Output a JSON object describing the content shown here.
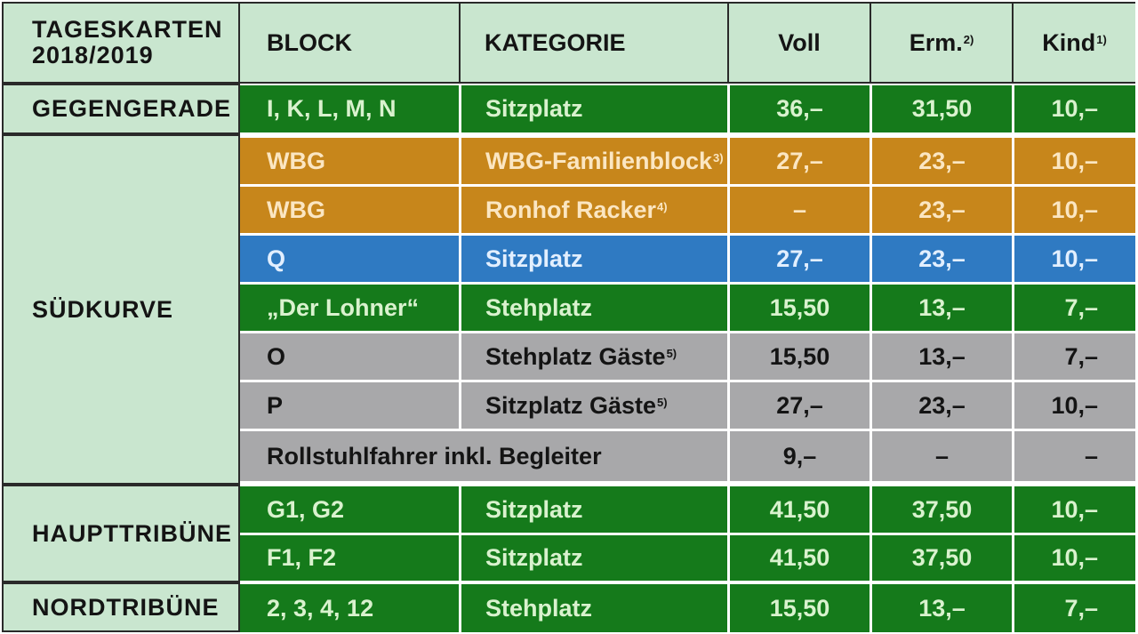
{
  "header": {
    "title_line1": "TAGESKARTEN",
    "title_line2": "2018/2019",
    "block": "BLOCK",
    "kategorie": "KATEGORIE",
    "voll": "Voll",
    "erm": "Erm.",
    "erm_note": "2)",
    "kind": "Kind",
    "kind_note": "1)"
  },
  "sections": {
    "gegengerade": "GEGENGERADE",
    "suedkurve": "SÜDKURVE",
    "haupttribuene": "HAUPTTRIBÜNE",
    "nordtribuene": "NORDTRIBÜNE"
  },
  "rows": [
    {
      "block": "I, K, L, M, N",
      "kategorie": "Sitzplatz",
      "note": "",
      "voll": "36,–",
      "erm": "31,50",
      "kind": "10,–",
      "color": "#157a1b"
    },
    {
      "block": "WBG",
      "kategorie": "WBG-Familienblock",
      "note": "3)",
      "voll": "27,–",
      "erm": "23,–",
      "kind": "10,–",
      "color": "#c7861b"
    },
    {
      "block": "WBG",
      "kategorie": "Ronhof Racker",
      "note": "4)",
      "voll": "–",
      "erm": "23,–",
      "kind": "10,–",
      "color": "#c7861b"
    },
    {
      "block": "Q",
      "kategorie": "Sitzplatz",
      "note": "",
      "voll": "27,–",
      "erm": "23,–",
      "kind": "10,–",
      "color": "#2f7ac2"
    },
    {
      "block": "„Der Lohner“",
      "kategorie": "Stehplatz",
      "note": "",
      "voll": "15,50",
      "erm": "13,–",
      "kind": "7,–",
      "color": "#157a1b"
    },
    {
      "block": "O",
      "kategorie": "Stehplatz Gäste",
      "note": "5)",
      "voll": "15,50",
      "erm": "13,–",
      "kind": "7,–",
      "color": "#a8a8aa"
    },
    {
      "block": "P",
      "kategorie": "Sitzplatz Gäste",
      "note": "5)",
      "voll": "27,–",
      "erm": "23,–",
      "kind": "10,–",
      "color": "#a8a8aa"
    },
    {
      "label": "Rollstuhlfahrer inkl. Begleiter",
      "voll": "9,–",
      "erm": "–",
      "kind": "–",
      "color": "#a8a8aa"
    },
    {
      "block": "G1, G2",
      "kategorie": "Sitzplatz",
      "note": "",
      "voll": "41,50",
      "erm": "37,50",
      "kind": "10,–",
      "color": "#157a1b"
    },
    {
      "block": "F1, F2",
      "kategorie": "Sitzplatz",
      "note": "",
      "voll": "41,50",
      "erm": "37,50",
      "kind": "10,–",
      "color": "#157a1b"
    },
    {
      "block": "2, 3, 4, 12",
      "kategorie": "Stehplatz",
      "note": "",
      "voll": "15,50",
      "erm": "13,–",
      "kind": "7,–",
      "color": "#157a1b"
    }
  ],
  "colors": {
    "header_bg": "#c9e6cf",
    "green": "#157a1b",
    "orange": "#c7861b",
    "blue": "#2f7ac2",
    "gray": "#a8a8aa"
  }
}
